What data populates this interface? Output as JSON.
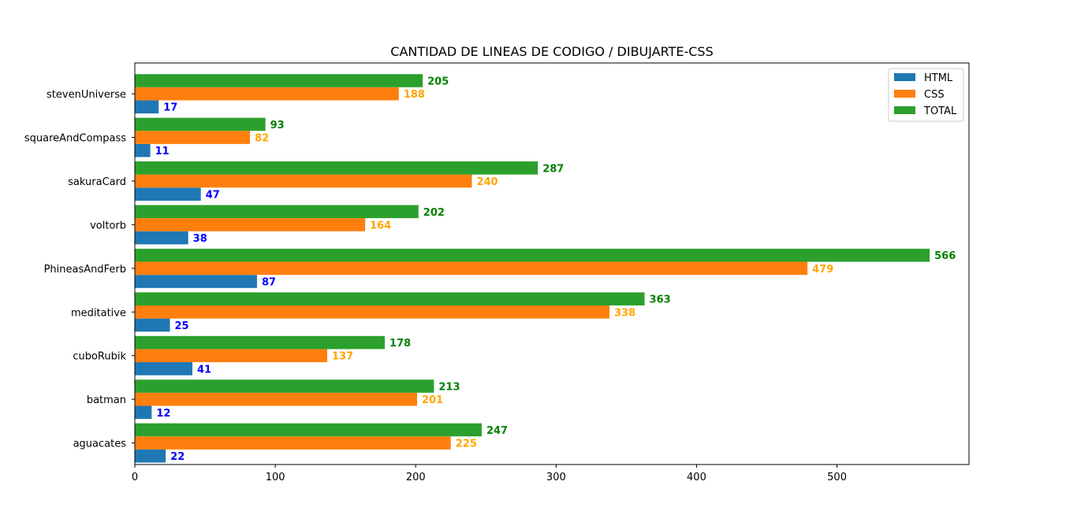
{
  "chart_data": {
    "type": "bar",
    "orientation": "horizontal",
    "title": "CANTIDAD DE LINEAS DE CODIGO / DIBUJARTE-CSS",
    "xlabel": "",
    "ylabel": "",
    "categories": [
      "stevenUniverse",
      "squareAndCompass",
      "sakuraCard",
      "voltorb",
      "PhineasAndFerb",
      "meditative",
      "cuboRubik",
      "batman",
      "aguacates"
    ],
    "series": [
      {
        "name": "HTML",
        "color": "#1f77b4",
        "label_color": "#0000ff",
        "values": [
          17,
          11,
          47,
          38,
          87,
          25,
          41,
          12,
          22
        ]
      },
      {
        "name": "CSS",
        "color": "#ff7f0e",
        "label_color": "#ffa500",
        "values": [
          188,
          82,
          240,
          164,
          479,
          338,
          137,
          201,
          225
        ]
      },
      {
        "name": "TOTAL",
        "color": "#2ca02c",
        "label_color": "#008000",
        "values": [
          205,
          93,
          287,
          202,
          566,
          363,
          178,
          213,
          247
        ]
      }
    ],
    "xlim": [
      0,
      594
    ],
    "xticks": [
      0,
      100,
      200,
      300,
      400,
      500
    ],
    "grid": false,
    "legend_position": "top-right"
  }
}
